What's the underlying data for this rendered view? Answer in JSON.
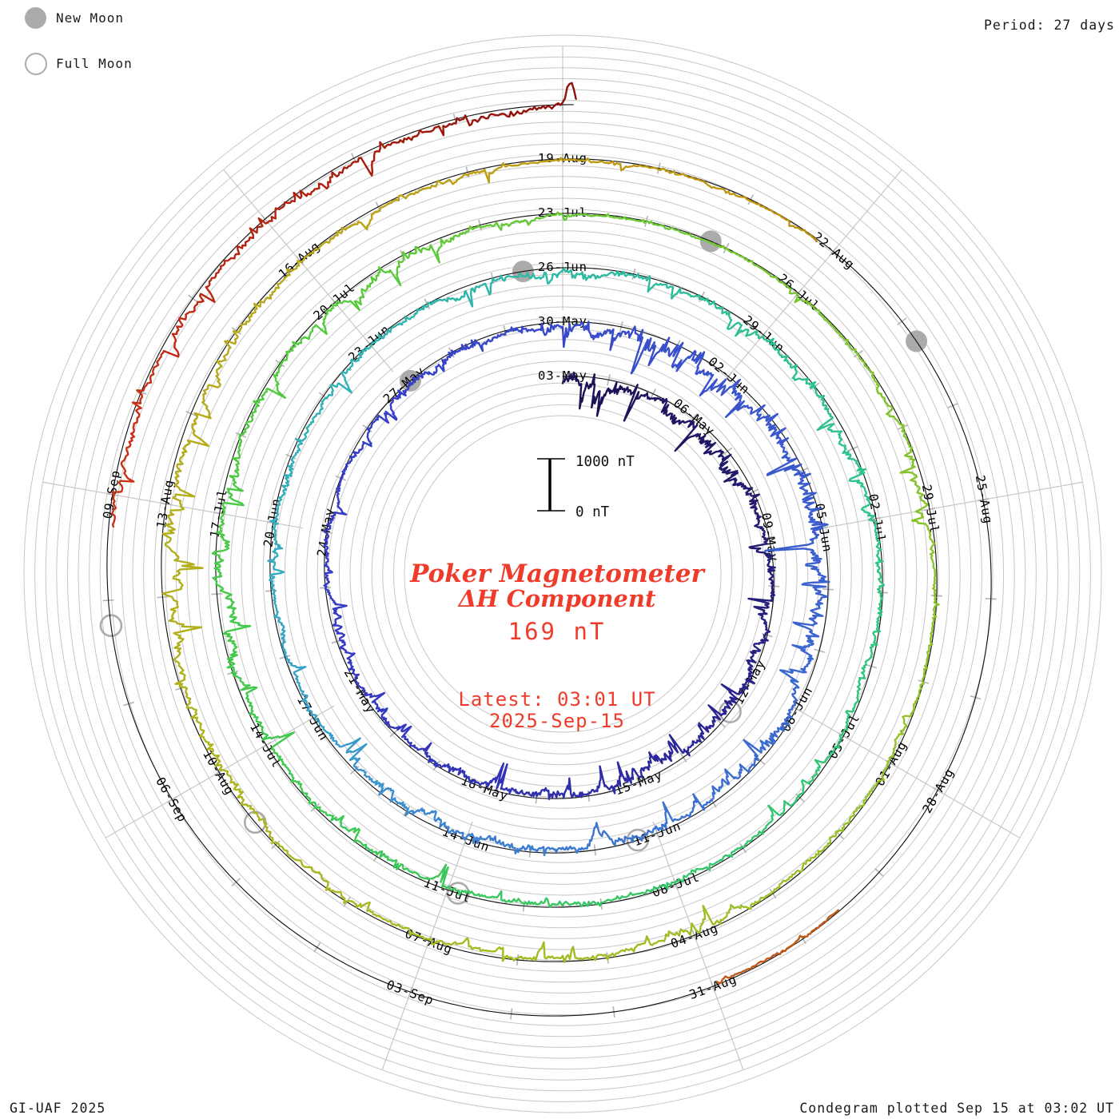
{
  "ui": {
    "legend": {
      "new_moon": "New Moon",
      "full_moon": "Full Moon"
    },
    "period": "Period: 27 days",
    "footer_left": "GI-UAF 2025",
    "footer_right": "Condegram plotted Sep 15 at 03:02 UT",
    "center": {
      "title": "Poker Magnetometer",
      "subtitle": "ΔH Component",
      "value": "169 nT",
      "latest_time": "Latest: 03:01 UT",
      "latest_date": "2025-Sep-15"
    },
    "scale_bar": {
      "top": "1000 nT",
      "bottom": "0 nT"
    },
    "colors": {
      "accent_red": "#ee3b2a",
      "grid": "#c7c7c7",
      "spoke": "#c7c7c7",
      "tick": "#b3b3b3",
      "baseline": "#151515",
      "moon_gray": "#ababab"
    }
  },
  "chart_data": {
    "type": "line (condegram polar spiral)",
    "title": "Poker Magnetometer ΔH Component",
    "station": "Poker",
    "component": "ΔH",
    "latest_value_nT": 169,
    "latest_datetime": "2025-Sep-15 03:01 UT",
    "plotted_datetime": "Sep 15 at 03:02 UT",
    "period_days": 27,
    "start_date_label": "03-May",
    "scale": {
      "ring_span_nT": 1000,
      "gridline_step_nT": 200,
      "scale_bar_top": "1000 nT",
      "scale_bar_bottom": "0 nT"
    },
    "day_labels": [
      [
        0,
        "03-May"
      ],
      [
        3,
        "06-May"
      ],
      [
        6,
        "09-May"
      ],
      [
        9,
        "12-May"
      ],
      [
        12,
        "15-May"
      ],
      [
        15,
        "18-May"
      ],
      [
        18,
        "21-May"
      ],
      [
        21,
        "24-May"
      ],
      [
        24,
        "27-May"
      ],
      [
        27,
        "30-May"
      ],
      [
        30,
        "02-Jun"
      ],
      [
        33,
        "05-Jun"
      ],
      [
        36,
        "08-Jun"
      ],
      [
        39,
        "11-Jun"
      ],
      [
        42,
        "14-Jun"
      ],
      [
        45,
        "17-Jun"
      ],
      [
        48,
        "20-Jun"
      ],
      [
        51,
        "23-Jun"
      ],
      [
        54,
        "26-Jun"
      ],
      [
        57,
        "29-Jun"
      ],
      [
        60,
        "02-Jul"
      ],
      [
        63,
        "05-Jul"
      ],
      [
        66,
        "08-Jul"
      ],
      [
        69,
        "11-Jul"
      ],
      [
        72,
        "14-Jul"
      ],
      [
        75,
        "17-Jul"
      ],
      [
        78,
        "20-Jul"
      ],
      [
        81,
        "23-Jul"
      ],
      [
        84,
        "26-Jul"
      ],
      [
        87,
        "29-Jul"
      ],
      [
        90,
        "01-Aug"
      ],
      [
        93,
        "04-Aug"
      ],
      [
        96,
        "07-Aug"
      ],
      [
        99,
        "10-Aug"
      ],
      [
        102,
        "13-Aug"
      ],
      [
        105,
        "16-Aug"
      ],
      [
        108,
        "19-Aug"
      ],
      [
        111,
        "22-Aug"
      ],
      [
        114,
        "25-Aug"
      ],
      [
        117,
        "28-Aug"
      ],
      [
        120,
        "31-Aug"
      ],
      [
        123,
        "03-Sep"
      ],
      [
        126,
        "06-Sep"
      ],
      [
        129,
        "09-Sep"
      ]
    ],
    "data_segments_days": [
      [
        0,
        110.8
      ],
      [
        118.55,
        119.95
      ],
      [
        128.7,
        135.13
      ]
    ],
    "daily_activity_nT": [
      650,
      750,
      550,
      500,
      820,
      700,
      450,
      320,
      280,
      480,
      350,
      380,
      420,
      380,
      480,
      380,
      320,
      280,
      230,
      260,
      220,
      240,
      200,
      260,
      320,
      300,
      380,
      520,
      650,
      950,
      1050,
      850,
      750,
      900,
      620,
      520,
      470,
      420,
      360,
      320,
      470,
      420,
      620,
      520,
      380,
      320,
      270,
      320,
      370,
      420,
      320,
      220,
      240,
      260,
      240,
      270,
      290,
      320,
      360,
      420,
      320,
      260,
      210,
      210,
      190,
      230,
      310,
      290,
      260,
      310,
      360,
      310,
      410,
      460,
      510,
      410,
      360,
      310,
      260,
      410,
      220,
      160,
      150,
      140,
      150,
      160,
      170,
      310,
      210,
      190,
      230,
      260,
      290,
      330,
      310,
      270,
      290,
      310,
      310,
      410,
      510,
      560,
      610,
      510,
      410,
      310,
      290,
      260,
      160,
      130,
      100,
      80,
      0,
      0,
      0,
      0,
      0,
      0,
      110,
      130,
      110,
      0,
      0,
      0,
      0,
      0,
      0,
      0,
      160,
      360,
      410,
      360,
      510,
      410,
      310,
      260
    ],
    "color_stops": [
      [
        0,
        "#1a1253"
      ],
      [
        6,
        "#231c72"
      ],
      [
        10,
        "#2a2492"
      ],
      [
        14,
        "#3030b0"
      ],
      [
        18,
        "#3439c2"
      ],
      [
        24,
        "#3540c8"
      ],
      [
        30,
        "#3a52cc"
      ],
      [
        36,
        "#3b68d0"
      ],
      [
        42,
        "#3c7fd0"
      ],
      [
        45,
        "#38a0c8"
      ],
      [
        48,
        "#33adc0"
      ],
      [
        52,
        "#2eb5ad"
      ],
      [
        56,
        "#2dbd99"
      ],
      [
        60,
        "#2ec487"
      ],
      [
        66,
        "#36c76a"
      ],
      [
        72,
        "#3fc94f"
      ],
      [
        78,
        "#55cb3a"
      ],
      [
        84,
        "#79c62f"
      ],
      [
        90,
        "#96c128"
      ],
      [
        96,
        "#a8b921"
      ],
      [
        102,
        "#b3ae1b"
      ],
      [
        106,
        "#bba313"
      ],
      [
        110,
        "#bf9410"
      ],
      [
        113,
        "#bb860e"
      ],
      [
        119,
        "#c05a18"
      ],
      [
        127,
        "#c63a1a"
      ],
      [
        130,
        "#c92f16"
      ],
      [
        133,
        "#a81c0c"
      ],
      [
        135.2,
        "#8c1006"
      ]
    ],
    "moons": {
      "new_moon_days": [
        24.13,
        53.44,
        82.8,
        112.25
      ],
      "full_moon_days": [
        9.71,
        39.32,
        68.86,
        98.33,
        127.76
      ]
    }
  }
}
